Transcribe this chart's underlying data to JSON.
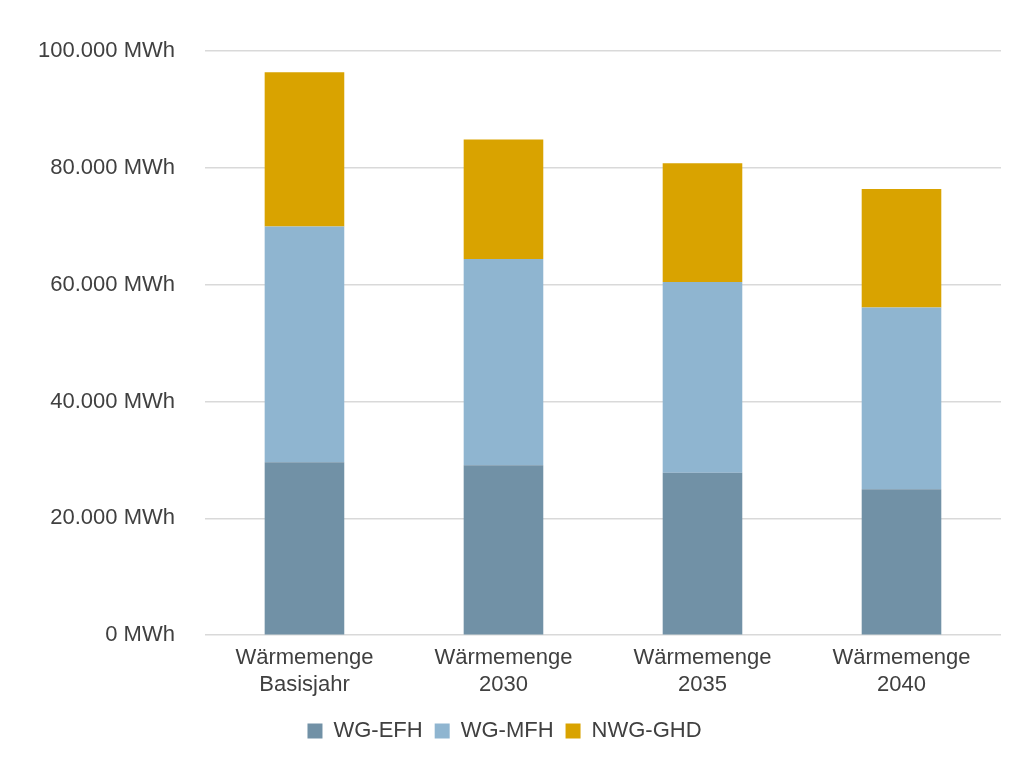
{
  "chart_data": {
    "type": "bar",
    "stacked": true,
    "categories": [
      "Wärmemenge Basisjahr",
      "Wärmemenge 2030",
      "Wärmemenge 2035",
      "Wärmemenge 2040"
    ],
    "series": [
      {
        "name": "WG-EFH",
        "color": "#7191a6",
        "values": [
          29600,
          29100,
          27800,
          25000
        ]
      },
      {
        "name": "WG-MFH",
        "color": "#8fb5d0",
        "values": [
          40400,
          35300,
          32700,
          31100
        ]
      },
      {
        "name": "NWG-GHD",
        "color": "#d9a300",
        "values": [
          26400,
          20500,
          20300,
          20300
        ]
      }
    ],
    "ylim": [
      0,
      100000
    ],
    "yticks": [
      {
        "value": 0,
        "label": "0 MWh"
      },
      {
        "value": 20000,
        "label": "20.000 MWh"
      },
      {
        "value": 40000,
        "label": "40.000 MWh"
      },
      {
        "value": 60000,
        "label": "60.000 MWh"
      },
      {
        "value": 80000,
        "label": "80.000 MWh"
      },
      {
        "value": 100000,
        "label": "100.000 MWh"
      }
    ],
    "grid": "y",
    "legend": "bottom"
  }
}
